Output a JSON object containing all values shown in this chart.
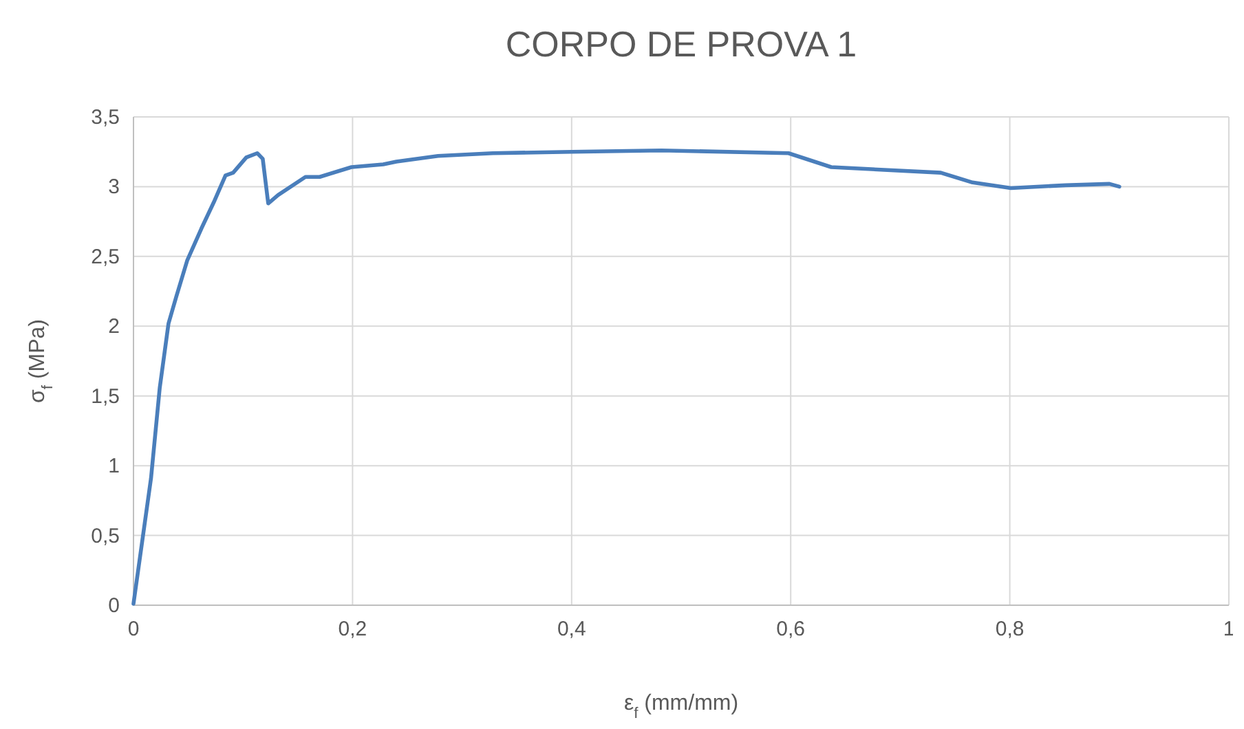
{
  "chart_data": {
    "type": "line",
    "title": "CORPO DE PROVA 1",
    "xlabel": "ε$_{f}$ (mm/mm)",
    "ylabel": "σ$_{f}$ (MPa)",
    "series": [
      {
        "color": "#4a7ebb",
        "x": [
          0,
          0.016,
          0.024,
          0.032,
          0.039,
          0.049,
          0.062,
          0.074,
          0.084,
          0.091,
          0.103,
          0.113,
          0.118,
          0.123,
          0.132,
          0.157,
          0.17,
          0.199,
          0.228,
          0.24,
          0.278,
          0.328,
          0.4,
          0.482,
          0.598,
          0.637,
          0.737,
          0.766,
          0.801,
          0.851,
          0.891,
          0.9
        ],
        "values": [
          0.01,
          0.91,
          1.56,
          2.02,
          2.21,
          2.47,
          2.7,
          2.9,
          3.08,
          3.1,
          3.21,
          3.24,
          3.2,
          2.88,
          2.94,
          3.07,
          3.07,
          3.14,
          3.16,
          3.18,
          3.22,
          3.24,
          3.25,
          3.26,
          3.24,
          3.14,
          3.1,
          3.03,
          2.99,
          3.01,
          3.02,
          3.0
        ]
      }
    ],
    "xlim": [
      0,
      1
    ],
    "ylim": [
      0,
      3.5
    ],
    "xticks": [
      0,
      {
        "value": 0.2,
        "label": "0,2"
      },
      {
        "value": 0.4,
        "label": "0,4"
      },
      {
        "value": 0.6,
        "label": "0,6"
      },
      {
        "value": 0.8,
        "label": "0,8"
      },
      1
    ],
    "yticks": [
      0,
      {
        "value": 0.5,
        "label": "0,5"
      },
      1,
      {
        "value": 1.5,
        "label": "1,5"
      },
      2,
      {
        "value": 2.5,
        "label": "2,5"
      },
      3,
      {
        "value": 3.5,
        "label": "3,5"
      }
    ],
    "grid": true,
    "line_style": "solid",
    "marker": "none"
  }
}
